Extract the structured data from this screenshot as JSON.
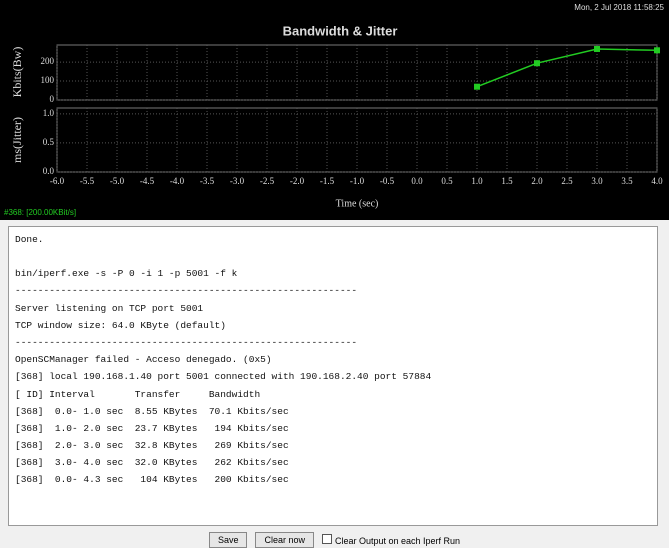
{
  "header": {
    "timestamp": "Mon, 2 Jul 2018 11:58:25"
  },
  "chart_data": [
    {
      "type": "line",
      "title": "Bandwidth & Jitter",
      "y_label": "Kbits(Bw)",
      "x": [
        1.0,
        2.0,
        3.0,
        4.0
      ],
      "series": [
        {
          "name": "#368: [200.00KBit/s]",
          "color": "#22cc22",
          "values": [
            70.1,
            194,
            269,
            262
          ]
        }
      ],
      "xlim": [
        -6,
        4
      ],
      "xticks": [
        -6,
        -5.5,
        -5,
        -4.5,
        -4,
        -3.5,
        -3,
        -2.5,
        -2,
        -1.5,
        -1,
        -0.5,
        0,
        0.5,
        1,
        1.5,
        2,
        2.5,
        3,
        3.5,
        4
      ],
      "ylim": [
        0,
        290
      ],
      "yticks": [
        0,
        100,
        200
      ],
      "grid": true
    },
    {
      "type": "line",
      "y_label": "ms(Jitter)",
      "x_label": "Time (sec)",
      "xlim": [
        -6,
        4
      ],
      "xticks": [
        {
          "value": -6,
          "label": "-6.0"
        },
        -5.5,
        {
          "value": -5,
          "label": "-5.0"
        },
        -4.5,
        {
          "value": -4,
          "label": "-4.0"
        },
        -3.5,
        {
          "value": -3,
          "label": "-3.0"
        },
        -2.5,
        {
          "value": -2,
          "label": "-2.0"
        },
        -1.5,
        {
          "value": -1,
          "label": "-1.0"
        },
        -0.5,
        {
          "value": 0,
          "label": "0.0"
        },
        0.5,
        {
          "value": 1,
          "label": "1.0"
        },
        1.5,
        {
          "value": 2,
          "label": "2.0"
        },
        2.5,
        {
          "value": 3,
          "label": "3.0"
        },
        3.5,
        {
          "value": 4,
          "label": "4.0"
        }
      ],
      "ylim": [
        0,
        1.1
      ],
      "yticks": [
        {
          "value": 0,
          "label": "0.0"
        },
        0.5,
        {
          "value": 1,
          "label": "1.0"
        }
      ],
      "grid": true
    }
  ],
  "console": {
    "lines": [
      "Done.",
      "bin/iperf.exe -s -P 0 -i 1 -p 5001 -f k",
      "------------------------------------------------------------",
      "Server listening on TCP port 5001",
      "TCP window size: 64.0 KByte (default)",
      "------------------------------------------------------------",
      "OpenSCManager failed - Acceso denegado. (0x5)",
      "[368] local 190.168.1.40 port 5001 connected with 190.168.2.40 port 57884",
      "[ ID] Interval       Transfer     Bandwidth",
      "[368]  0.0- 1.0 sec  8.55 KBytes  70.1 Kbits/sec",
      "[368]  1.0- 2.0 sec  23.7 KBytes   194 Kbits/sec",
      "[368]  2.0- 3.0 sec  32.8 KBytes   269 Kbits/sec",
      "[368]  3.0- 4.0 sec  32.0 KBytes   262 Kbits/sec",
      "[368]  0.0- 4.3 sec   104 KBytes   200 Kbits/sec"
    ]
  },
  "controls": {
    "save": "Save",
    "clear": "Clear now",
    "checkbox": "Clear Output on each Iperf Run"
  }
}
